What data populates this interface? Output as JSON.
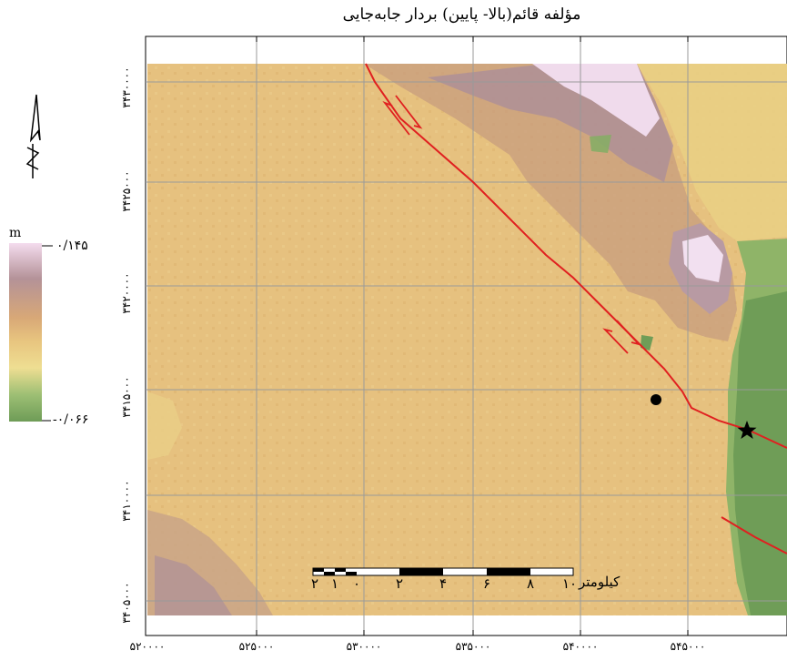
{
  "map": {
    "title": "مؤلفه قائم(بالا- پایین) بردار جابه‌جایی",
    "x_ticks": [
      "۵۲۰۰۰۰",
      "۵۲۵۰۰۰",
      "۵۳۰۰۰۰",
      "۵۳۵۰۰۰",
      "۵۴۰۰۰۰",
      "۵۴۵۰۰۰"
    ],
    "y_ticks": [
      "۳۴۳۰۰۰۰",
      "۳۴۲۵۰۰۰",
      "۳۴۲۰۰۰۰",
      "۳۴۱۵۰۰۰",
      "۳۴۱۰۰۰۰",
      "۳۴۰۵۰۰۰"
    ],
    "legend": {
      "unit": "m",
      "max_label": "۰/۱۴۵",
      "min_label": "-۰/۰۶۶",
      "gradient_colors": [
        "#f4dcee",
        "#b49298",
        "#d8a877",
        "#e8c57f",
        "#eede92",
        "#9dbf74",
        "#6e9c57"
      ]
    },
    "scale_bar": {
      "labels": [
        "۲",
        "۱",
        "۰",
        "۲",
        "۴",
        "۶",
        "۸",
        "۱۰"
      ],
      "unit": "کیلومتر"
    },
    "colors": {
      "background_raster": "#e6c17f",
      "fault_line": "#e02020",
      "uplift": "#f2dff0",
      "subsidence": "#71a05a",
      "grid": "#9a9a9a"
    },
    "icons": {
      "north_arrow": "north-arrow-icon",
      "epicenter": "star-icon",
      "station": "filled-circle-icon"
    }
  }
}
